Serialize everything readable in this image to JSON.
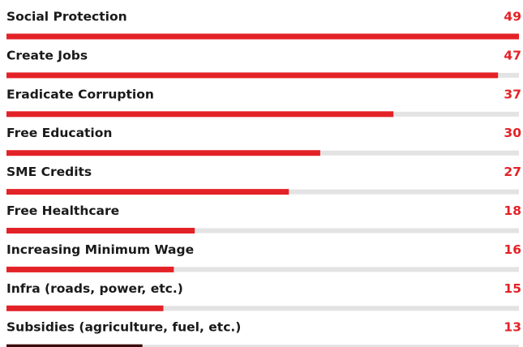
{
  "chart_data": {
    "type": "bar",
    "orientation": "horizontal",
    "categories": [
      "Social Protection",
      "Create Jobs",
      "Eradicate Corruption",
      "Free Education",
      "SME Credits",
      "Free Healthcare",
      "Increasing Minimum Wage",
      "Infra (roads, power, etc.)",
      "Subsidies (agriculture, fuel, etc.)"
    ],
    "values": [
      49,
      47,
      37,
      30,
      27,
      18,
      16,
      15,
      13
    ],
    "colors": [
      "#e32227",
      "#e32227",
      "#e32227",
      "#e32227",
      "#e32227",
      "#e32227",
      "#e32227",
      "#e32227",
      "#3a0c0c"
    ],
    "track_color": "#e3e3e3",
    "label_color": "#e32227"
  }
}
